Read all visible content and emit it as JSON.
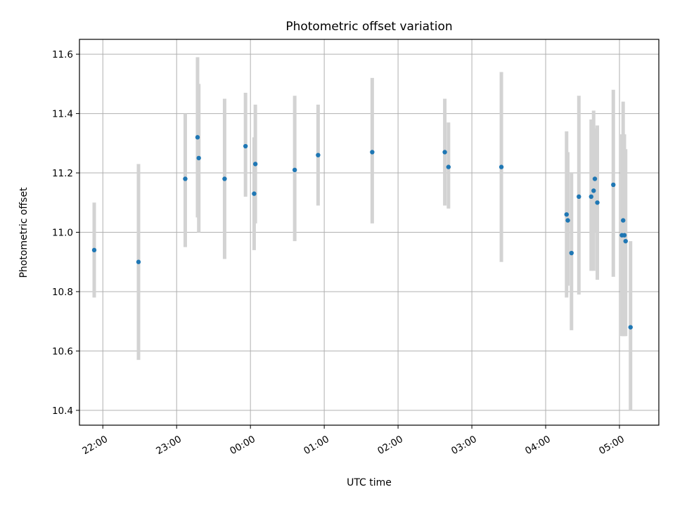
{
  "chart_data": {
    "type": "scatter",
    "title": "Photometric offset variation",
    "xlabel": "UTC time",
    "ylabel": "Photometric offset",
    "x_unit": "UTC time of night",
    "x_ticks": [
      "22:00",
      "23:00",
      "00:00",
      "01:00",
      "02:00",
      "03:00",
      "04:00",
      "05:00"
    ],
    "xlim": [
      "21:41",
      "05:32"
    ],
    "y_ticks": [
      10.4,
      10.6,
      10.8,
      11.0,
      11.2,
      11.4,
      11.6
    ],
    "ylim": [
      10.35,
      11.65
    ],
    "grid": true,
    "colors": {
      "point": "#1f77b4",
      "errorbar": "#d3d3d3"
    },
    "points": [
      {
        "t": "21:53",
        "y": 10.94,
        "lo": 10.78,
        "hi": 11.1
      },
      {
        "t": "22:29",
        "y": 10.9,
        "lo": 10.57,
        "hi": 11.23
      },
      {
        "t": "23:07",
        "y": 11.18,
        "lo": 10.95,
        "hi": 11.4
      },
      {
        "t": "23:17",
        "y": 11.32,
        "lo": 11.05,
        "hi": 11.59
      },
      {
        "t": "23:18",
        "y": 11.25,
        "lo": 11.0,
        "hi": 11.5
      },
      {
        "t": "23:39",
        "y": 11.18,
        "lo": 10.91,
        "hi": 11.45
      },
      {
        "t": "23:56",
        "y": 11.29,
        "lo": 11.12,
        "hi": 11.47
      },
      {
        "t": "00:03",
        "y": 11.13,
        "lo": 10.94,
        "hi": 11.32
      },
      {
        "t": "00:04",
        "y": 11.23,
        "lo": 11.03,
        "hi": 11.43
      },
      {
        "t": "00:36",
        "y": 11.21,
        "lo": 10.97,
        "hi": 11.46
      },
      {
        "t": "00:55",
        "y": 11.26,
        "lo": 11.09,
        "hi": 11.43
      },
      {
        "t": "01:39",
        "y": 11.27,
        "lo": 11.03,
        "hi": 11.52
      },
      {
        "t": "02:38",
        "y": 11.27,
        "lo": 11.09,
        "hi": 11.45
      },
      {
        "t": "02:41",
        "y": 11.22,
        "lo": 11.08,
        "hi": 11.37
      },
      {
        "t": "03:24",
        "y": 11.22,
        "lo": 10.9,
        "hi": 11.54
      },
      {
        "t": "04:17",
        "y": 11.06,
        "lo": 10.78,
        "hi": 11.34
      },
      {
        "t": "04:18",
        "y": 11.04,
        "lo": 10.82,
        "hi": 11.27
      },
      {
        "t": "04:21",
        "y": 10.93,
        "lo": 10.67,
        "hi": 11.2
      },
      {
        "t": "04:27",
        "y": 11.12,
        "lo": 10.79,
        "hi": 11.46
      },
      {
        "t": "04:37",
        "y": 11.12,
        "lo": 10.87,
        "hi": 11.38
      },
      {
        "t": "04:39",
        "y": 11.14,
        "lo": 10.87,
        "hi": 11.41
      },
      {
        "t": "04:40",
        "y": 11.18,
        "lo": 11.0,
        "hi": 11.35
      },
      {
        "t": "04:42",
        "y": 11.1,
        "lo": 10.84,
        "hi": 11.36
      },
      {
        "t": "04:55",
        "y": 11.16,
        "lo": 10.85,
        "hi": 11.48
      },
      {
        "t": "05:02",
        "y": 10.99,
        "lo": 10.65,
        "hi": 11.33
      },
      {
        "t": "05:03",
        "y": 11.04,
        "lo": 10.65,
        "hi": 11.44
      },
      {
        "t": "05:04",
        "y": 10.99,
        "lo": 10.65,
        "hi": 11.33
      },
      {
        "t": "05:05",
        "y": 10.97,
        "lo": 10.65,
        "hi": 11.28
      },
      {
        "t": "05:09",
        "y": 10.68,
        "lo": 10.4,
        "hi": 10.97
      }
    ]
  }
}
